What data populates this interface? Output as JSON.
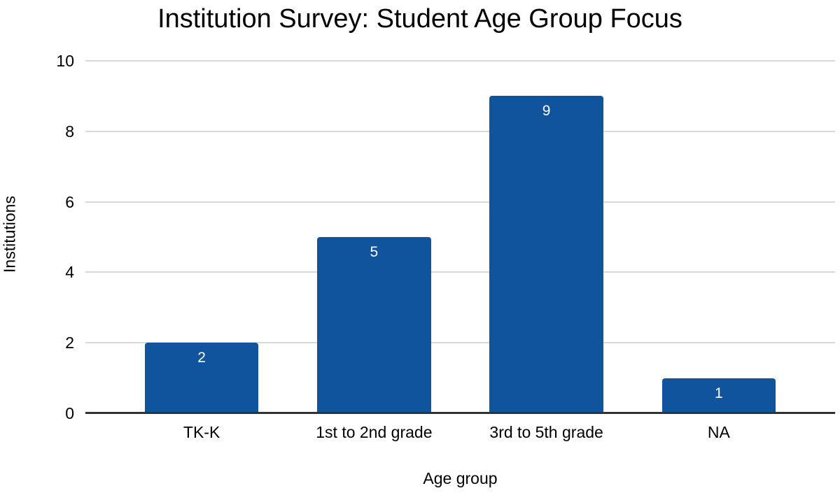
{
  "chart_data": {
    "type": "bar",
    "title": "Institution Survey: Student Age Group Focus",
    "categories": [
      "TK-K",
      "1st to 2nd grade",
      "3rd to 5th grade",
      "NA"
    ],
    "values": [
      2,
      5,
      9,
      1
    ],
    "xlabel": "Age group",
    "ylabel": "Institutions",
    "ylim": [
      0,
      10
    ],
    "yticks": [
      0,
      2,
      4,
      6,
      8,
      10
    ],
    "grid": true,
    "legend": false,
    "data_labels": [
      "2",
      "5",
      "9",
      "1"
    ],
    "colors": {
      "bar": "#11549e",
      "data_label": "#ffffff",
      "gridline": "#d9d9d9",
      "axis": "#333333",
      "text": "#000000",
      "background": "#ffffff"
    }
  }
}
